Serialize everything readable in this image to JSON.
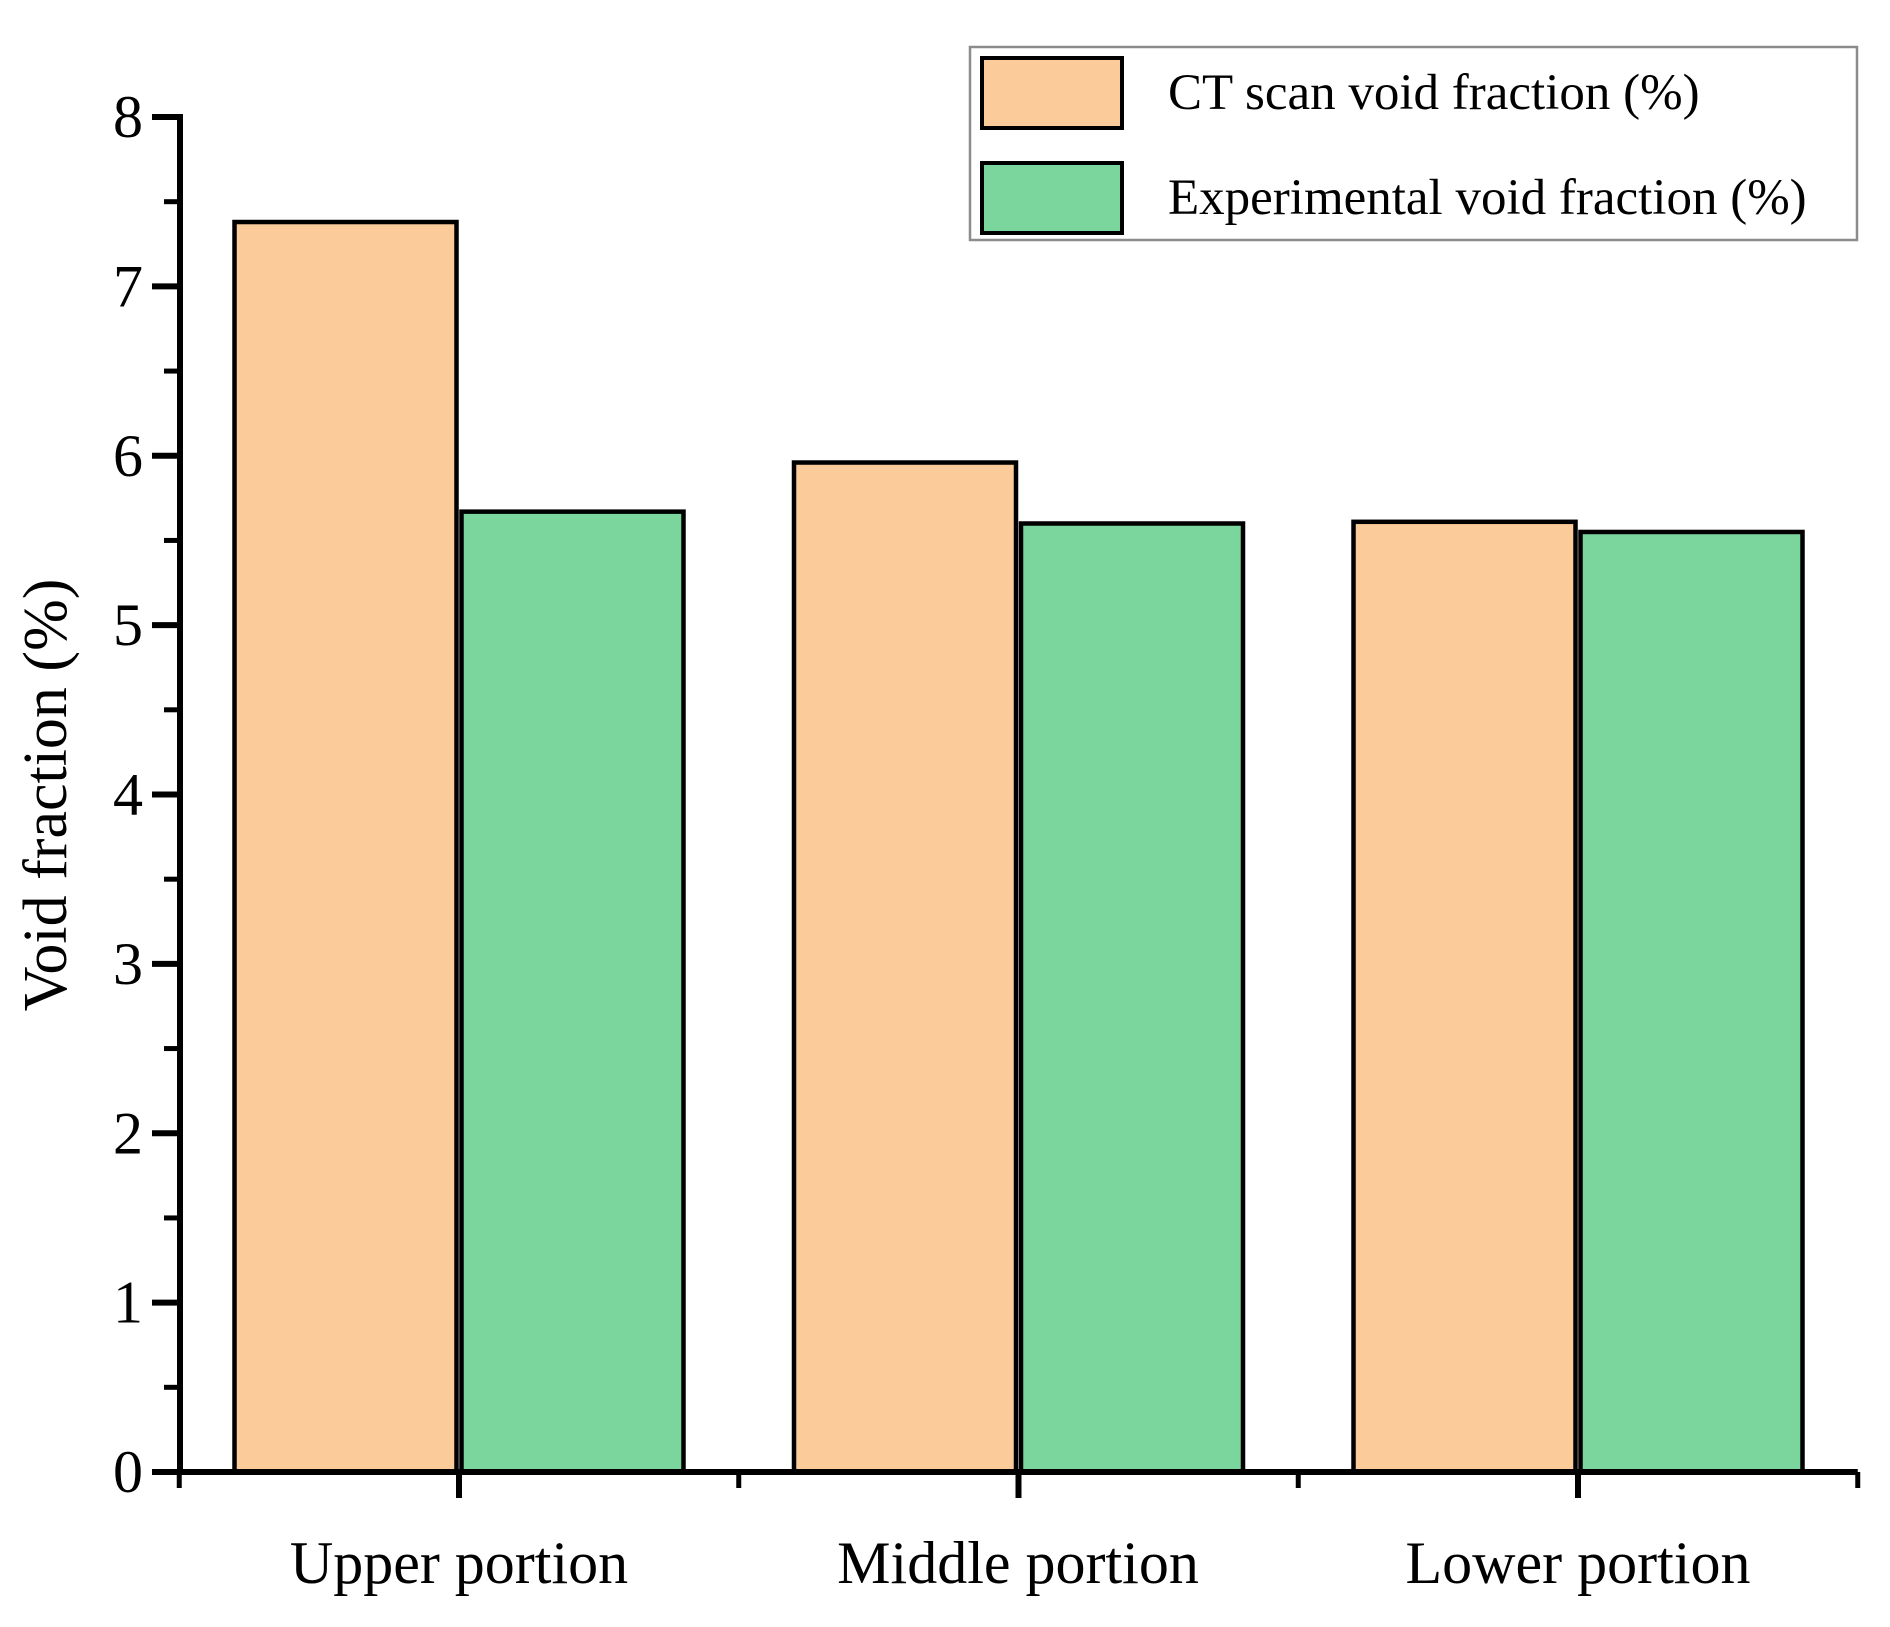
{
  "chart_data": {
    "type": "bar",
    "title": "",
    "categories": [
      "Upper portion",
      "Middle portion",
      "Lower portion"
    ],
    "series": [
      {
        "name": "CT scan void fraction (%)",
        "color": "#FBCB9A",
        "values": [
          7.38,
          5.96,
          5.61
        ]
      },
      {
        "name": "Experimental void fraction (%)",
        "color": "#7AD69C",
        "values": [
          5.67,
          5.6,
          5.55
        ]
      }
    ],
    "xlabel": "",
    "ylabel": "Void fraction (%)",
    "ylim": [
      0,
      8
    ],
    "ytick_step": 1,
    "yminor_step": 0.5,
    "ytick_labels": [
      "0",
      "1",
      "2",
      "3",
      "4",
      "5",
      "6",
      "7",
      "8"
    ],
    "grid": false,
    "legend_position": "top-right",
    "colors": {
      "bar_border": "#000000",
      "axis": "#000000",
      "text": "#000000",
      "legend_border": "#8C8C8C",
      "background": "#FFFFFF"
    }
  }
}
